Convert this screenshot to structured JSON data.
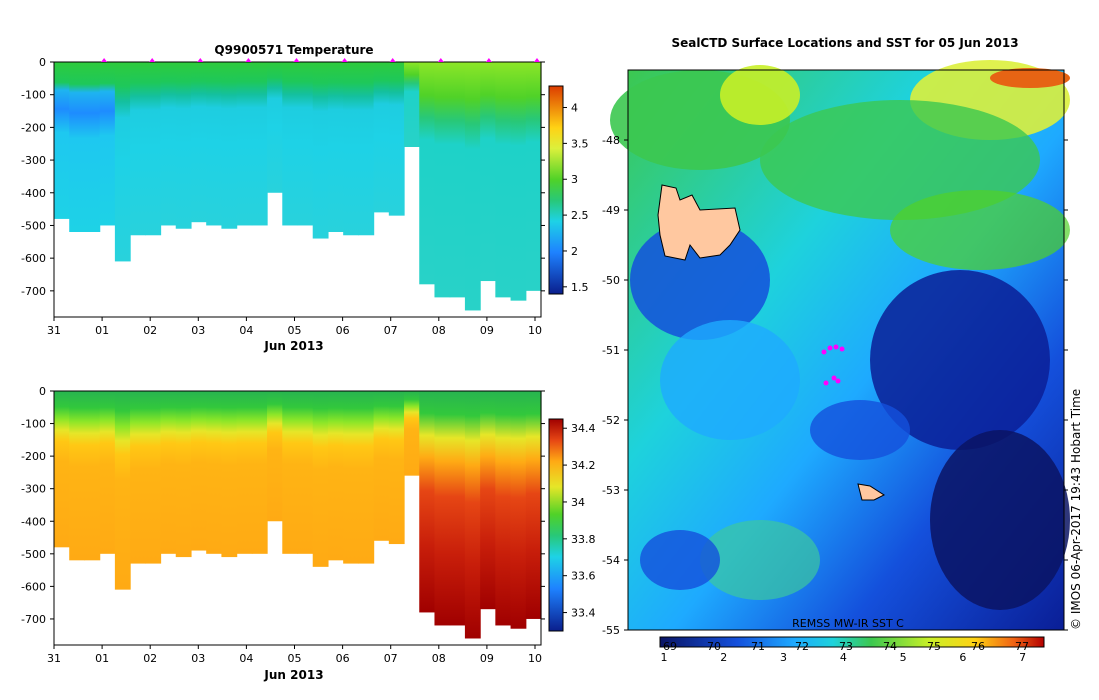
{
  "chart_data": [
    {
      "type": "heatmap",
      "title": "Q9900571  Temperature",
      "xlabel": "Jun 2013",
      "ylabel": "",
      "x_ticks": [
        "31",
        "01",
        "02",
        "03",
        "04",
        "05",
        "06",
        "07",
        "08",
        "09",
        "10"
      ],
      "y_ticks": [
        0,
        -100,
        -200,
        -300,
        -400,
        -500,
        -600,
        -700
      ],
      "ylim": [
        -780,
        0
      ],
      "colorbar": {
        "ticks": [
          1.5,
          2,
          2.5,
          3,
          3.5,
          4
        ],
        "range": [
          1.4,
          4.3
        ]
      },
      "profile_depths": [
        -480,
        -520,
        -520,
        -500,
        -610,
        -530,
        -530,
        -500,
        -510,
        -490,
        -500,
        -510,
        -500,
        -500,
        -400,
        -500,
        -500,
        -540,
        -520,
        -530,
        -530,
        -460,
        -470,
        -260,
        -680,
        -720,
        -720,
        -760,
        -670,
        -720,
        -730,
        -700
      ],
      "markers": [
        "profile-time",
        "profile-time",
        "profile-time",
        "profile-time",
        "profile-time",
        "profile-time",
        "profile-time",
        "profile-time",
        "profile-time",
        "profile-time"
      ]
    },
    {
      "type": "heatmap",
      "title": "",
      "xlabel": "Jun 2013",
      "ylabel": "",
      "x_ticks": [
        "31",
        "01",
        "02",
        "03",
        "04",
        "05",
        "06",
        "07",
        "08",
        "09",
        "10"
      ],
      "y_ticks": [
        0,
        -100,
        -200,
        -300,
        -400,
        -500,
        -600,
        -700
      ],
      "ylim": [
        -780,
        0
      ],
      "colorbar": {
        "ticks": [
          33.4,
          33.6,
          33.8,
          34,
          34.2,
          34.4
        ],
        "range": [
          33.3,
          34.45
        ]
      }
    },
    {
      "type": "heatmap",
      "title": "SealCTD Surface Locations and SST for 05 Jun 2013",
      "y_ticks": [
        -48,
        -49,
        -50,
        -51,
        -52,
        -53,
        -54,
        -55
      ],
      "ylim": [
        -55,
        -47
      ],
      "colorbar": {
        "ticks_bottom": [
          1,
          2,
          3,
          4,
          5,
          6,
          7
        ],
        "ticks_top": [
          "69",
          "70",
          "71",
          "72",
          "73",
          "74",
          "75",
          "76",
          "77"
        ]
      },
      "source_label": "REMSS MW-IR SST C",
      "locations_color": "#ff00ff",
      "credit": "© IMOS 06-Apr-2017 19:43 Hobart Time"
    }
  ],
  "colors": {
    "land": "#ffc8a0",
    "marker": "#ff00ff"
  }
}
